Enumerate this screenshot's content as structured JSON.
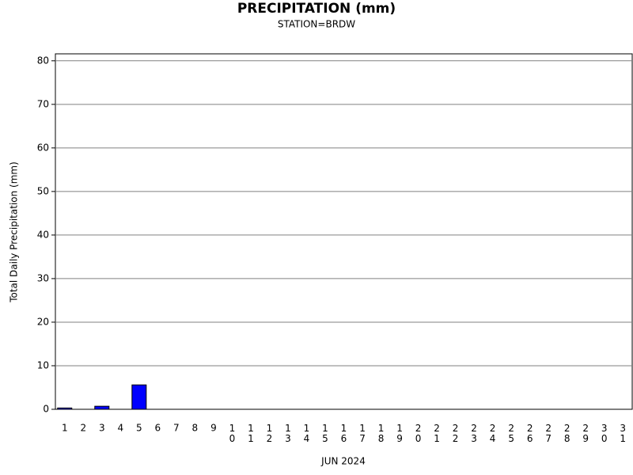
{
  "chart_data": {
    "type": "bar",
    "title": "PRECIPITATION (mm)",
    "subtitle": "STATION=BRDW",
    "x_label": "JUN 2024",
    "y_label": "Total Daily Precipitation (mm)",
    "categories": [
      "1",
      "2",
      "3",
      "4",
      "5",
      "6",
      "7",
      "8",
      "9",
      "10",
      "11",
      "12",
      "13",
      "14",
      "15",
      "16",
      "17",
      "18",
      "19",
      "20",
      "21",
      "22",
      "23",
      "24",
      "25",
      "26",
      "27",
      "28",
      "29",
      "30",
      "31"
    ],
    "values": [
      0.3,
      0,
      0.7,
      0,
      5.6,
      0,
      0,
      0,
      0,
      0,
      0,
      0,
      0,
      0,
      0,
      0,
      0,
      0,
      0,
      0,
      0,
      0,
      0,
      0,
      0,
      0,
      0,
      0,
      0,
      0,
      0
    ],
    "color": "#0000ff",
    "ylim": [
      0,
      81.6
    ],
    "yticks": [
      0,
      10,
      20,
      30,
      40,
      50,
      60,
      70,
      80
    ],
    "grid": true
  }
}
